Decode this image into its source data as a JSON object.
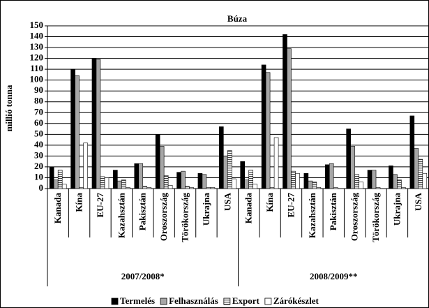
{
  "chart_data": {
    "type": "bar",
    "title": "Búza",
    "y_label": "millió tonna",
    "categories": [
      "Kanada",
      "Kína",
      "EU-27",
      "Kazahsztán",
      "Pakisztán",
      "Oroszország",
      "Törökország",
      "Ukrajna",
      "USA",
      "Kanada",
      "Kína",
      "EU-27",
      "Kazahsztán",
      "Pakisztán",
      "Oroszország",
      "Törökország",
      "Ukrajna",
      "USA"
    ],
    "category_groups": [
      "2007/2008*",
      "2008/2009**"
    ],
    "series": [
      {
        "name": "Termelés",
        "color": "#000000",
        "values": [
          20,
          110,
          120,
          17,
          23,
          50,
          15,
          14,
          57,
          25,
          114,
          142,
          14,
          22,
          55,
          17,
          21,
          67
        ]
      },
      {
        "name": "Felhasználás",
        "color": "#a6a6a6",
        "values": [
          8,
          104,
          119,
          7,
          23,
          39,
          16,
          13,
          30,
          8,
          107,
          129,
          7,
          23,
          39,
          17,
          13,
          37
        ]
      },
      {
        "name": "Export",
        "color": "#555555",
        "pattern": "stripes",
        "values": [
          17,
          1,
          11,
          8,
          2,
          12,
          2,
          1,
          35,
          17,
          1,
          16,
          6,
          1,
          13,
          1,
          8,
          27
        ]
      },
      {
        "name": "Zárókészlet",
        "color": "#ffffff",
        "values": [
          4,
          42,
          10,
          1,
          1,
          3,
          1,
          1,
          9,
          4,
          47,
          14,
          1,
          0,
          6,
          0,
          1,
          14
        ]
      }
    ],
    "ylim": [
      0,
      150
    ],
    "yticks": [
      0,
      10,
      20,
      30,
      40,
      50,
      60,
      70,
      80,
      90,
      100,
      110,
      120,
      130,
      140,
      150
    ],
    "grid": true,
    "legend": "bottom"
  }
}
